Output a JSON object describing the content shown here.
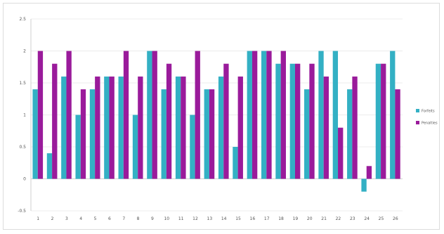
{
  "chart_data": {
    "type": "bar",
    "title": "",
    "xlabel": "",
    "ylabel": "",
    "ylim": [
      -0.5,
      2.5
    ],
    "y_ticks": [
      "2.5",
      "2",
      "1.5",
      "1",
      "0.5",
      "0",
      "-0.5"
    ],
    "grid": true,
    "legend": "right",
    "categories": [
      "1",
      "2",
      "3",
      "4",
      "5",
      "6",
      "7",
      "8",
      "9",
      "10",
      "11",
      "12",
      "13",
      "14",
      "15",
      "16",
      "17",
      "18",
      "19",
      "20",
      "21",
      "22",
      "23",
      "24",
      "25",
      "26"
    ],
    "series": [
      {
        "name": "Forfeits",
        "color": "#33b0c4",
        "values": [
          1.4,
          0.4,
          1.6,
          1.0,
          1.4,
          1.6,
          1.6,
          1.0,
          2.0,
          1.4,
          1.6,
          1.0,
          1.4,
          1.6,
          0.5,
          2.0,
          2.0,
          1.8,
          1.8,
          1.4,
          2.0,
          2.0,
          1.4,
          -0.2,
          1.8,
          2.0
        ]
      },
      {
        "name": "Penalties",
        "color": "#9a1b9b",
        "values": [
          2.0,
          1.8,
          2.0,
          1.4,
          1.6,
          1.6,
          2.0,
          1.6,
          2.0,
          1.8,
          1.6,
          2.0,
          1.4,
          1.8,
          1.6,
          2.0,
          2.0,
          2.0,
          1.8,
          1.8,
          1.6,
          0.8,
          1.6,
          0.2,
          1.8,
          1.4
        ]
      }
    ]
  }
}
